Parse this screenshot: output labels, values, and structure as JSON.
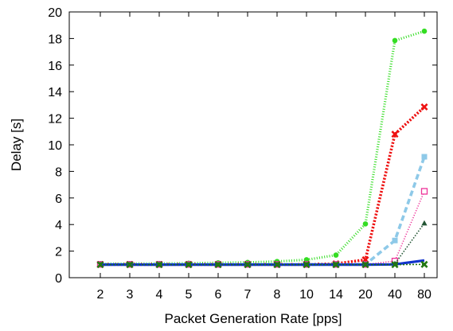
{
  "chart_data": {
    "type": "line",
    "xlabel": "Packet Generation Rate [pps]",
    "ylabel": "Delay [s]",
    "categories": [
      "2",
      "3",
      "4",
      "5",
      "6",
      "7",
      "8",
      "10",
      "14",
      "20",
      "40",
      "80"
    ],
    "ylim": [
      0,
      20
    ],
    "yticks": [
      0,
      2,
      4,
      6,
      8,
      10,
      12,
      14,
      16,
      18,
      20
    ],
    "grid": false,
    "legend": "none",
    "series": [
      {
        "color": "#33dd22",
        "marker": "circle",
        "dash": "1 2.2",
        "width": 3.2,
        "values": [
          1.05,
          1.06,
          1.07,
          1.09,
          1.12,
          1.15,
          1.22,
          1.35,
          1.7,
          4.05,
          17.85,
          18.55
        ]
      },
      {
        "color": "#ee1111",
        "marker": "x",
        "dash": "2.2 2",
        "width": 3.6,
        "values": [
          1.0,
          1.0,
          1.0,
          1.0,
          1.0,
          1.0,
          1.0,
          1.0,
          1.05,
          1.35,
          10.8,
          12.85
        ]
      },
      {
        "color": "#8ec9e8",
        "marker": "square",
        "dash": "7 4",
        "width": 3.6,
        "values": [
          1.0,
          1.0,
          1.0,
          1.0,
          1.0,
          1.0,
          1.0,
          1.0,
          1.0,
          1.0,
          2.8,
          9.1
        ]
      },
      {
        "color": "#ee3399",
        "marker": "open-square",
        "dash": "1.2 2",
        "width": 1.6,
        "values": [
          1.0,
          1.0,
          1.0,
          1.0,
          1.0,
          1.0,
          1.0,
          1.0,
          1.0,
          1.0,
          1.25,
          6.5
        ]
      },
      {
        "color": "#225533",
        "marker": "triangle",
        "dash": "1.5 2",
        "width": 1.6,
        "values": [
          1.0,
          1.0,
          1.0,
          1.0,
          1.0,
          1.0,
          1.0,
          1.0,
          1.0,
          1.0,
          1.05,
          4.1
        ]
      },
      {
        "color": "#1133cc",
        "marker": "none",
        "dash": "",
        "width": 3.2,
        "values": [
          0.98,
          0.98,
          0.98,
          0.98,
          0.98,
          0.98,
          0.98,
          0.98,
          0.98,
          0.98,
          1.0,
          1.3
        ]
      },
      {
        "color": "#227711",
        "marker": "x",
        "dash": "2 2",
        "width": 1.6,
        "values": [
          0.98,
          0.98,
          0.98,
          0.98,
          0.98,
          0.98,
          0.98,
          0.98,
          0.98,
          0.98,
          0.98,
          1.0
        ]
      }
    ]
  }
}
